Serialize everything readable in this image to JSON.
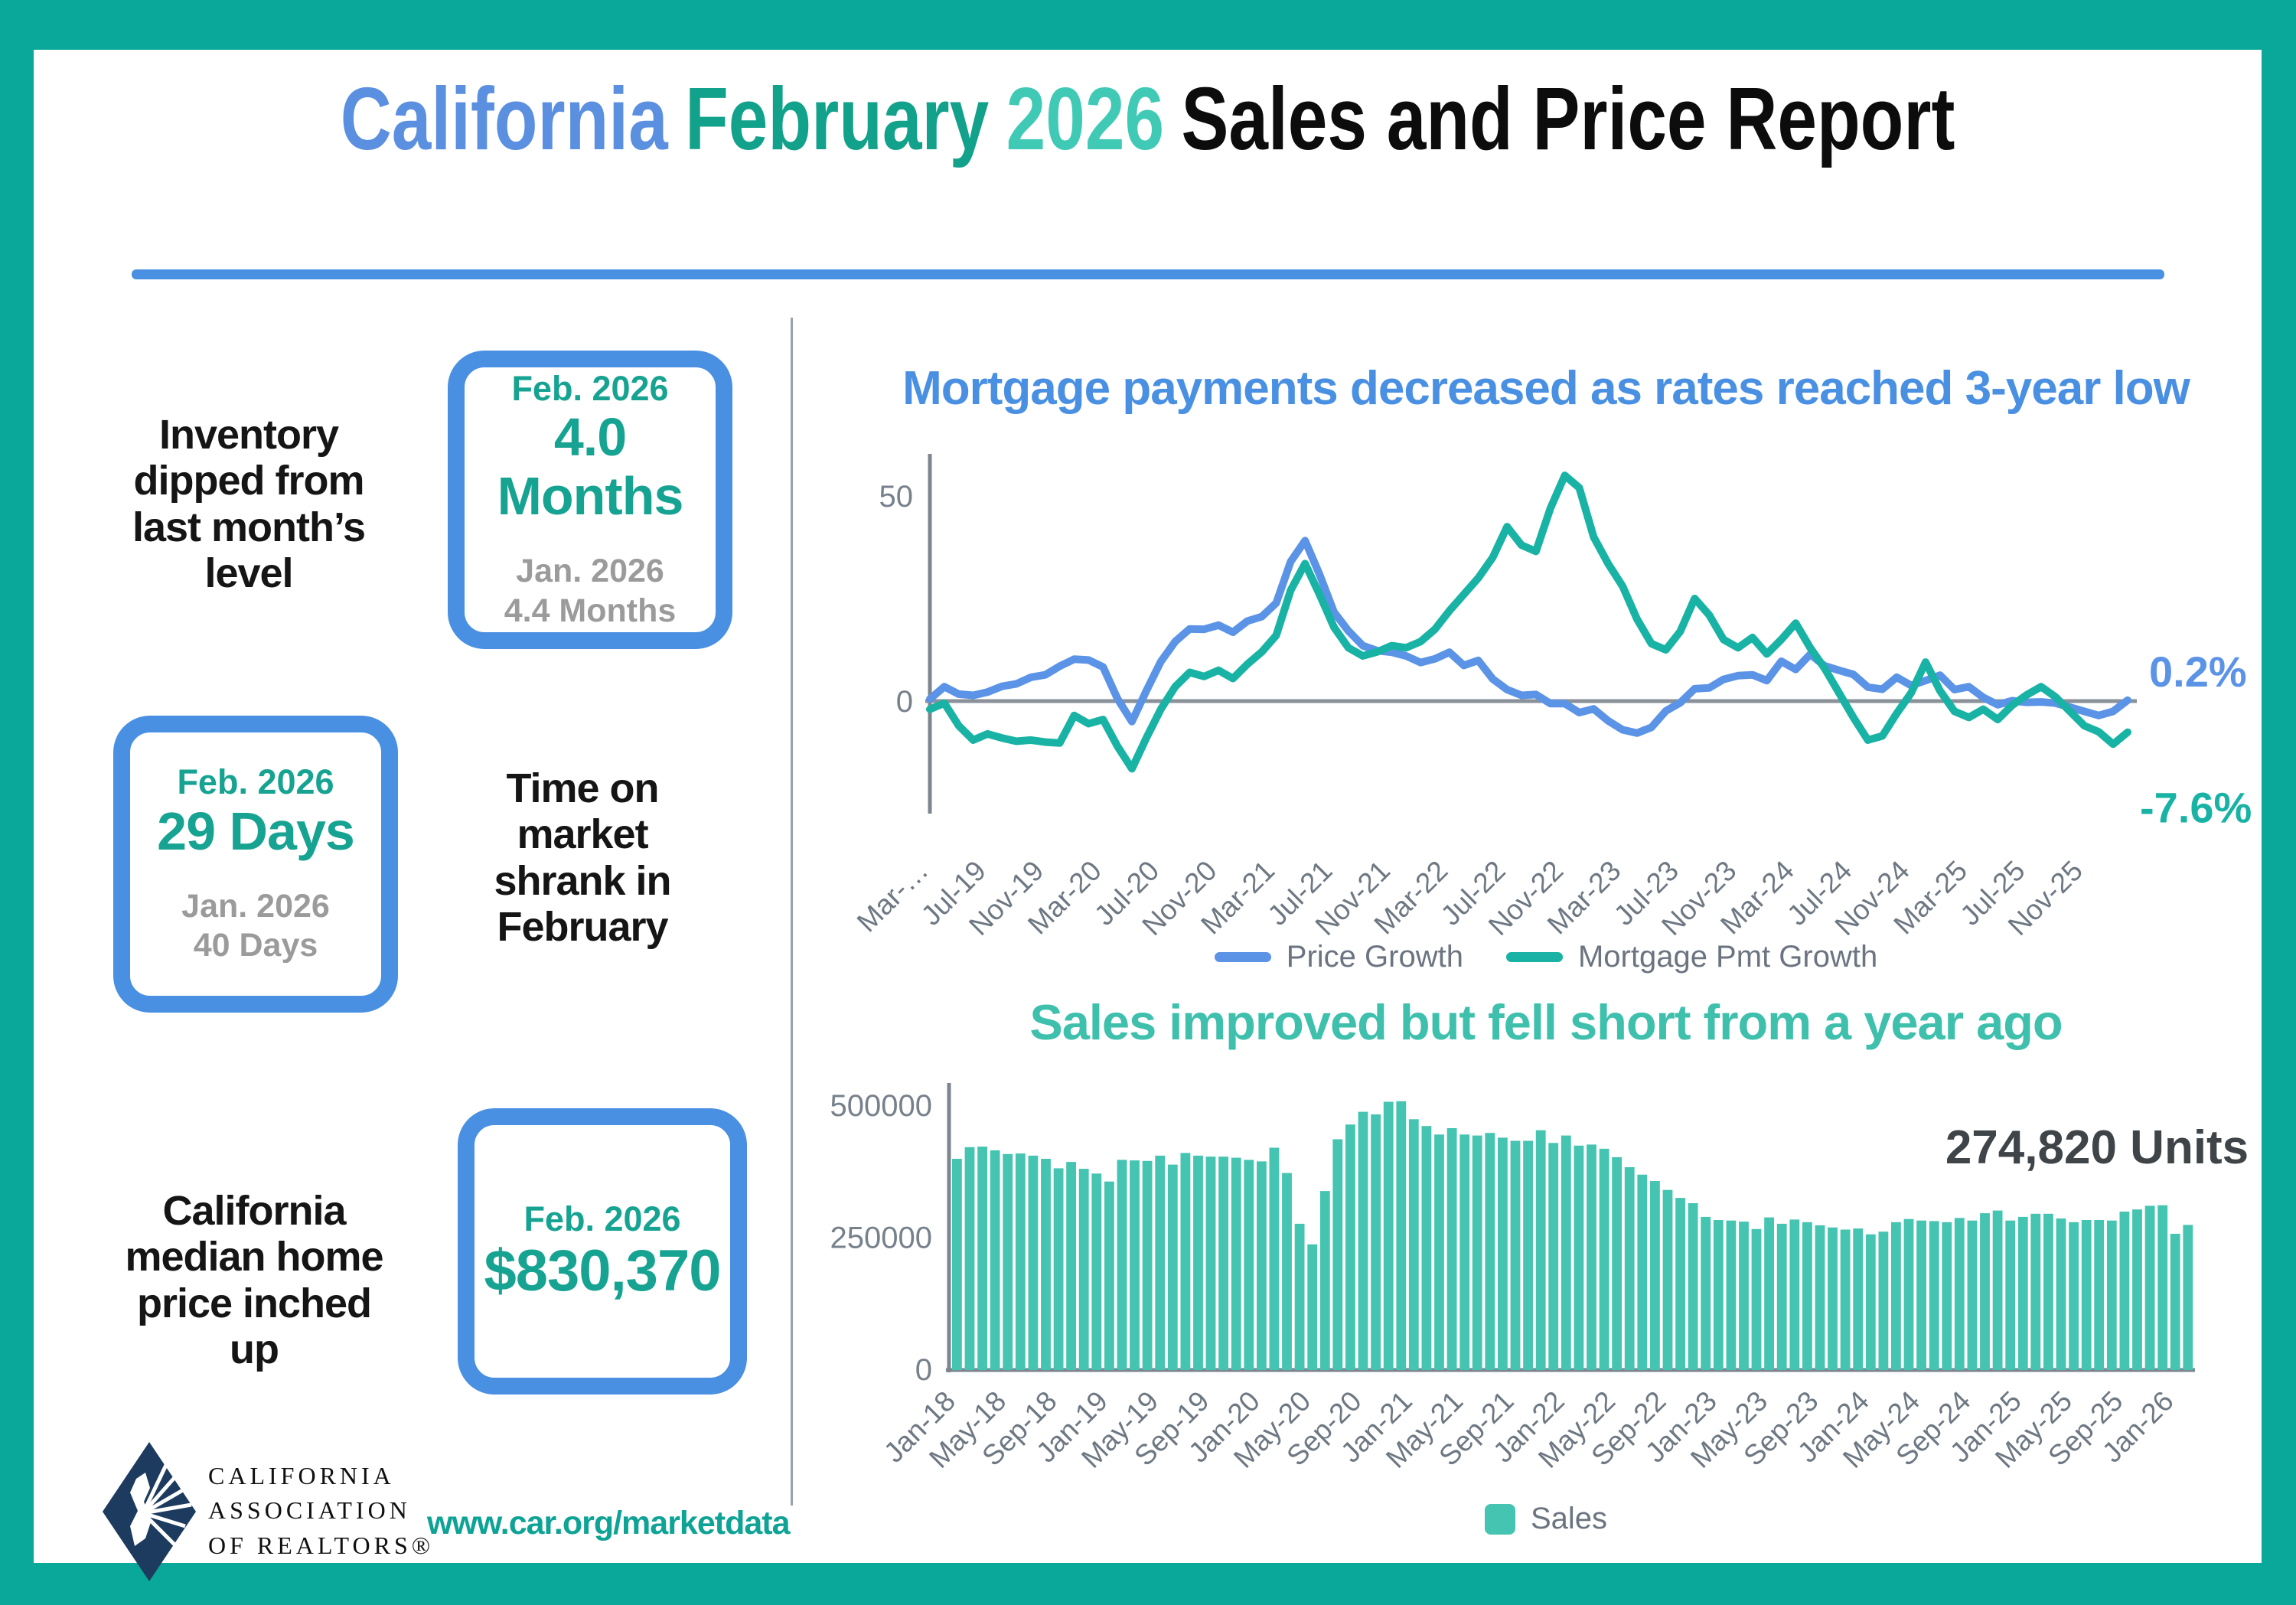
{
  "frame": {
    "border_color": "#0aa79b",
    "background": "#ffffff"
  },
  "title": {
    "part_california": "California",
    "part_february": "February",
    "part_year": "2026",
    "part_rest": "Sales and Price Report",
    "color_california": "#5b8fe0",
    "color_february": "#12a18b",
    "color_year": "#40cab6",
    "color_rest": "#0c0c0c"
  },
  "stats": [
    {
      "label": "Inventory\ndipped from\nlast month’s\nlevel",
      "current_period": "Feb. 2026",
      "current_value": "4.0 Months",
      "previous_period": "Jan. 2026",
      "previous_value": "4.4 Months"
    },
    {
      "label": "Time on\nmarket\nshrank in\nFebruary",
      "current_period": "Feb. 2026",
      "current_value": "29 Days",
      "previous_period": "Jan. 2026",
      "previous_value": "40 Days"
    },
    {
      "label": "California\nmedian home\nprice inched\nup",
      "current_period": "Feb. 2026",
      "current_value": "$830,370"
    }
  ],
  "logo": {
    "line1": "CALIFORNIA",
    "line2": "ASSOCIATION",
    "line3": "OF REALTORS®"
  },
  "website": "www.car.org/marketdata",
  "chart_data": [
    {
      "type": "line",
      "title": "Mortgage payments decreased as rates reached 3-year low",
      "title_color": "#4a90e2",
      "x_tick_labels": [
        "Mar-…",
        "Jul-19",
        "Nov-19",
        "Mar-20",
        "Jul-20",
        "Nov-20",
        "Mar-21",
        "Jul-21",
        "Nov-21",
        "Mar-22",
        "Jul-22",
        "Nov-22",
        "Mar-23",
        "Jul-23",
        "Nov-23",
        "Mar-24",
        "Jul-24",
        "Nov-24",
        "Mar-25",
        "Jul-25",
        "Nov-25"
      ],
      "tick_every": 4,
      "x_range_note": "monthly Mar-2019 through Feb-2026",
      "yticks": [
        0,
        50
      ],
      "ylim": [
        -20,
        60
      ],
      "legend_position": "bottom",
      "series": [
        {
          "name": "Price Growth",
          "color": "#5b93e6",
          "end_label": "0.2%",
          "values": [
            0.5,
            3.5,
            1.7,
            1.4,
            2.2,
            3.6,
            4.2,
            5.8,
            6.4,
            8.5,
            10.2,
            10.0,
            8.3,
            0.6,
            -5.0,
            2.5,
            9.6,
            14.5,
            17.6,
            17.5,
            18.5,
            16.8,
            19.5,
            20.6,
            23.9,
            34.0,
            39.1,
            30.9,
            21.7,
            17.1,
            13.5,
            12.3,
            11.9,
            11.0,
            9.4,
            10.3,
            11.9,
            8.7,
            9.9,
            5.4,
            2.8,
            1.4,
            1.6,
            -0.6,
            -0.6,
            -2.8,
            -1.9,
            -4.8,
            -7.0,
            -7.8,
            -6.4,
            -2.4,
            -0.4,
            3.0,
            3.2,
            5.3,
            6.2,
            6.4,
            5.0,
            9.7,
            7.7,
            11.4,
            8.6,
            7.5,
            6.5,
            3.4,
            2.9,
            5.8,
            3.8,
            5.0,
            6.3,
            2.8,
            3.5,
            0.9,
            -0.9,
            0.1,
            -0.3,
            -0.2,
            -0.5,
            -1.5,
            -2.5,
            -3.5,
            -2.5,
            0.2
          ]
        },
        {
          "name": "Mortgage Pmt Growth",
          "color": "#19b3a5",
          "end_label": "-7.6%",
          "values": [
            -2.0,
            -0.5,
            -6.0,
            -9.5,
            -8.0,
            -9.0,
            -9.8,
            -9.5,
            -10.0,
            -10.2,
            -3.5,
            -5.5,
            -4.5,
            -11.0,
            -16.5,
            -9.0,
            -2.0,
            3.5,
            7.0,
            6.0,
            7.5,
            5.5,
            9.0,
            12.0,
            16.0,
            27.0,
            33.5,
            26.0,
            18.0,
            13.0,
            11.0,
            12.0,
            13.5,
            13.0,
            14.5,
            17.5,
            22.0,
            26.0,
            30.0,
            35.0,
            42.5,
            38.0,
            36.5,
            47.0,
            55.0,
            52.0,
            40.0,
            33.5,
            28.0,
            20.0,
            14.0,
            12.5,
            17.0,
            25.0,
            21.0,
            15.0,
            13.0,
            15.5,
            11.5,
            15.0,
            19.0,
            13.0,
            8.0,
            2.0,
            -4.0,
            -9.5,
            -8.5,
            -3.0,
            2.0,
            9.5,
            2.5,
            -2.5,
            -4.0,
            -2.0,
            -4.5,
            -1.0,
            1.5,
            3.5,
            1.0,
            -2.5,
            -6.0,
            -7.5,
            -10.5,
            -7.6
          ]
        }
      ]
    },
    {
      "type": "bar",
      "title": "Sales improved but fell short from a year ago",
      "title_color": "#3ec0ad",
      "bar_color": "#44c4b1",
      "legend": "Sales",
      "annotation": "274,820 Units",
      "annotation_color": "#3f4448",
      "x_tick_labels": [
        "Jan-18",
        "May-18",
        "Sep-18",
        "Jan-19",
        "May-19",
        "Sep-19",
        "Jan-20",
        "May-20",
        "Sep-20",
        "Jan-21",
        "May-21",
        "Sep-21",
        "Jan-22",
        "May-22",
        "Sep-22",
        "Jan-23",
        "May-23",
        "Sep-23",
        "Jan-24",
        "May-24",
        "Sep-24",
        "Jan-25",
        "May-25",
        "Sep-25",
        "Jan-26"
      ],
      "tick_every": 4,
      "x_range_note": "monthly Jan-2018 through Feb-2026",
      "yticks": [
        0,
        250000,
        500000
      ],
      "ylim": [
        0,
        520000
      ],
      "legend_position": "bottom",
      "values": [
        400000,
        422000,
        423000,
        416000,
        409000,
        410000,
        406000,
        400000,
        382000,
        394000,
        381000,
        372000,
        357000,
        398000,
        397000,
        396000,
        406000,
        389000,
        411000,
        406000,
        404000,
        404000,
        402000,
        398000,
        395000,
        421000,
        373000,
        277000,
        238000,
        339000,
        437000,
        465000,
        489000,
        484000,
        508000,
        509000,
        475000,
        462000,
        446000,
        458000,
        446000,
        444000,
        449000,
        440000,
        434000,
        434000,
        454000,
        430000,
        444000,
        425000,
        427000,
        419000,
        403000,
        384000,
        370000,
        358000,
        341000,
        326000,
        316000,
        290000,
        284000,
        283000,
        281000,
        267000,
        289000,
        277000,
        285000,
        280000,
        274000,
        270000,
        266000,
        268000,
        257000,
        262000,
        280000,
        286000,
        283000,
        282000,
        280000,
        288000,
        283000,
        297000,
        302000,
        283000,
        290000,
        296000,
        296000,
        287000,
        280000,
        284000,
        284000,
        283000,
        300000,
        304000,
        311000,
        312000,
        258000,
        274820
      ]
    }
  ]
}
